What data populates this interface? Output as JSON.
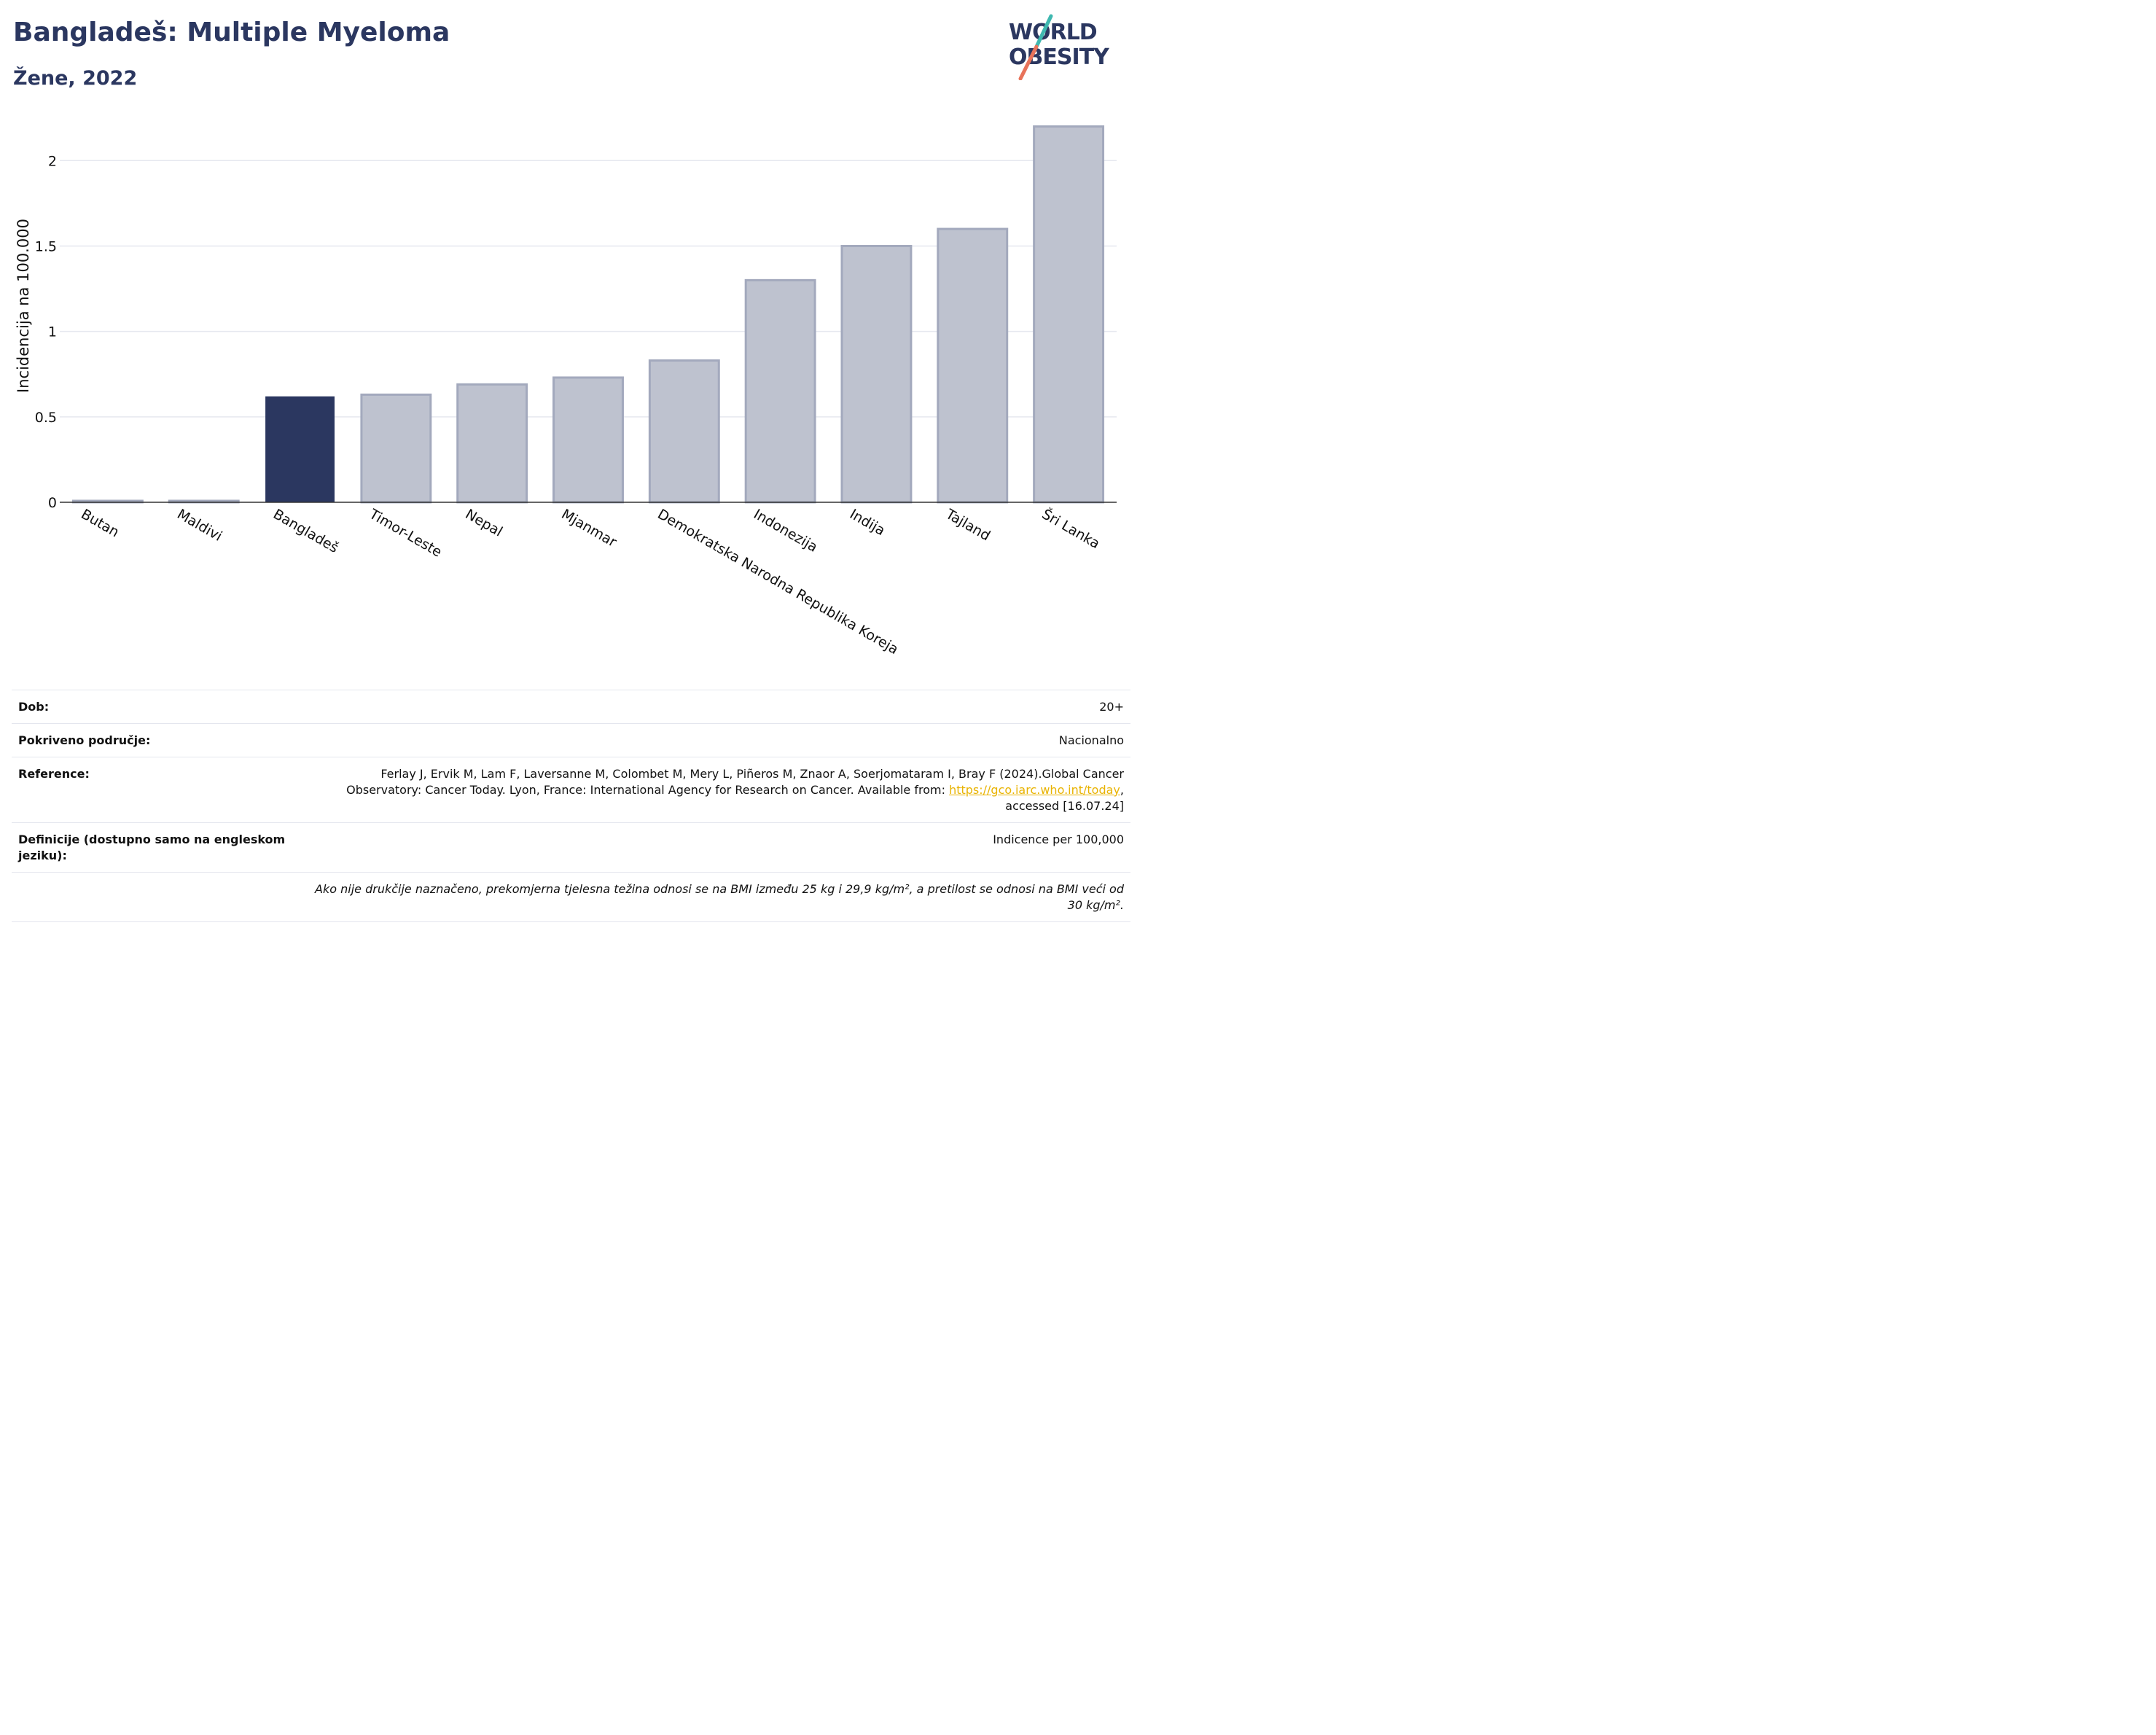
{
  "header": {
    "title": "Bangladeš: Multiple Myeloma",
    "subtitle": "Žene, 2022"
  },
  "logo": {
    "line1": "WORLD",
    "line2": "OBESITY",
    "accent_colors": [
      "#3fb8b0",
      "#e8735a"
    ]
  },
  "colors": {
    "highlight": "#2b3760",
    "bar": "#bec2cf",
    "bar_stroke": "#a3a9bd"
  },
  "chart_data": {
    "type": "bar",
    "ylabel": "Incidencija na 100.000",
    "xlabel": "",
    "categories": [
      "Butan",
      "Maldivi",
      "Bangladeš",
      "Timor-Leste",
      "Nepal",
      "Mjanmar",
      "Demokratska Narodna Republika Koreja",
      "Indonezija",
      "Indija",
      "Tajland",
      "Šri Lanka"
    ],
    "values": [
      0.0,
      0.0,
      0.62,
      0.63,
      0.69,
      0.73,
      0.83,
      1.3,
      1.5,
      1.6,
      2.2
    ],
    "highlight_category": "Bangladeš",
    "ylim": [
      0,
      2.3
    ],
    "yticks": [
      0,
      0.5,
      1,
      1.5,
      2
    ],
    "ytick_labels": [
      "0",
      "0.5",
      "1",
      "1.5",
      "2"
    ],
    "grid": true
  },
  "info": {
    "age_label": "Dob:",
    "age_value": "20+",
    "coverage_label": "Pokriveno područje:",
    "coverage_value": "Nacionalno",
    "reference_label": "Reference:",
    "reference_text": "Ferlay J, Ervik M, Lam F, Laversanne M, Colombet M, Mery L, Piñeros M, Znaor A, Soerjomataram I, Bray F (2024).Global Cancer Observatory: Cancer Today. Lyon, France: International Agency for Research on Cancer. Available from: ",
    "reference_link": "https://gco.iarc.who.int/today",
    "reference_suffix": ", accessed [16.07.24]",
    "definitions_label": "Definicije (dostupno samo na engleskom jeziku):",
    "definitions_value": "Indicence per 100,000",
    "note": "Ako nije drukčije naznačeno, prekomjerna tjelesna težina odnosi se na BMI između 25 kg i 29,9 kg/m², a pretilost se odnosi na BMI veći od 30 kg/m²."
  }
}
